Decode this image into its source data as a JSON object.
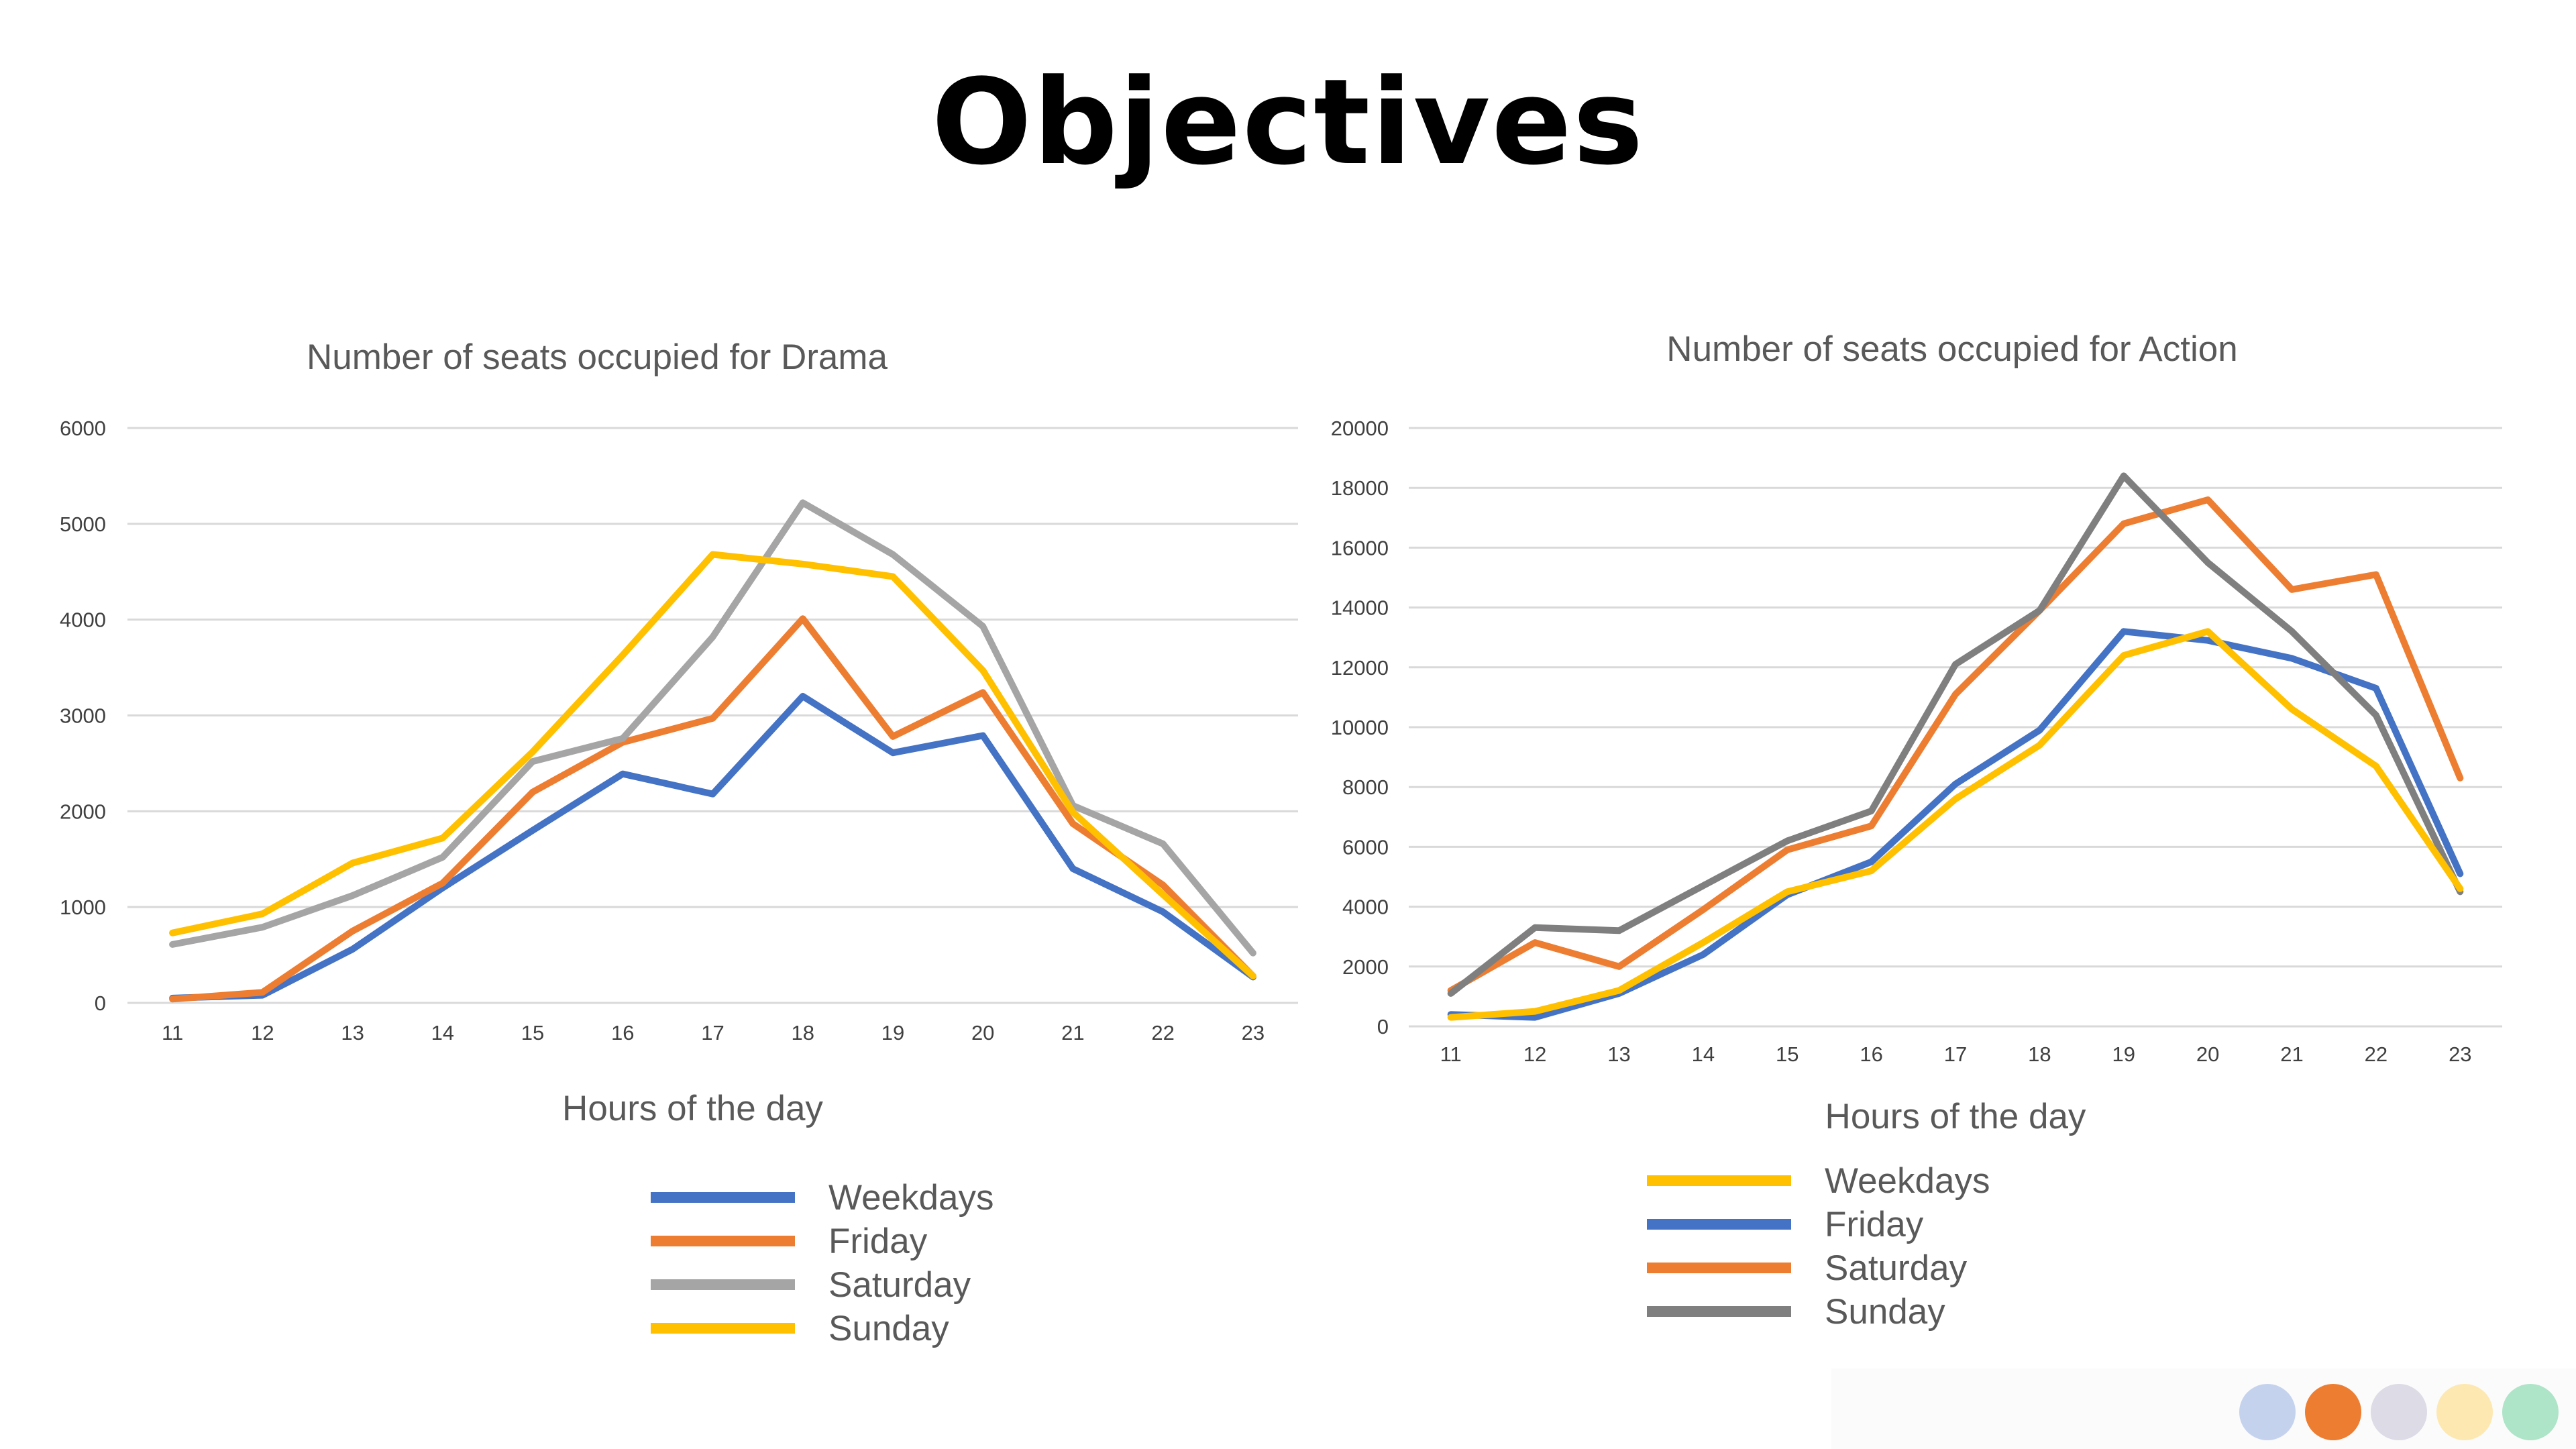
{
  "page": {
    "title": "Objectives"
  },
  "decor": {
    "dots": [
      "#c5d2ee",
      "#ed7d31",
      "#dcdbe6",
      "#fde8b1",
      "#aee4c8"
    ]
  },
  "chart_data": [
    {
      "type": "line",
      "title": "Number of seats occupied for Drama",
      "xlabel": "Hours of the day",
      "ylabel": "",
      "x": [
        11,
        12,
        13,
        14,
        15,
        16,
        17,
        18,
        19,
        20,
        21,
        22,
        23
      ],
      "ylim": [
        0,
        6000
      ],
      "yticks": [
        0,
        1000,
        2000,
        3000,
        4000,
        5000,
        6000
      ],
      "grid": true,
      "legend_position": "bottom",
      "series": [
        {
          "name": "Weekdays",
          "color": "#4472c4",
          "values": [
            50,
            80,
            560,
            1200,
            1800,
            2390,
            2180,
            3200,
            2610,
            2790,
            1400,
            950,
            270
          ]
        },
        {
          "name": "Friday",
          "color": "#ed7d31",
          "values": [
            40,
            110,
            750,
            1250,
            2200,
            2720,
            2970,
            4010,
            2780,
            3240,
            1870,
            1230,
            280
          ]
        },
        {
          "name": "Saturday",
          "color": "#a5a5a5",
          "values": [
            610,
            790,
            1120,
            1520,
            2520,
            2760,
            3820,
            5220,
            4680,
            3930,
            2060,
            1660,
            520
          ]
        },
        {
          "name": "Sunday",
          "color": "#ffc000",
          "values": [
            730,
            930,
            1460,
            1720,
            2620,
            3630,
            4680,
            4580,
            4450,
            3470,
            1990,
            1130,
            280
          ]
        }
      ],
      "legend_order": [
        "Weekdays",
        "Friday",
        "Saturday",
        "Sunday"
      ]
    },
    {
      "type": "line",
      "title": "Number of seats occupied for Action",
      "xlabel": "Hours of the day",
      "ylabel": "",
      "x": [
        11,
        12,
        13,
        14,
        15,
        16,
        17,
        18,
        19,
        20,
        21,
        22,
        23
      ],
      "ylim": [
        0,
        20000
      ],
      "yticks": [
        0,
        2000,
        4000,
        6000,
        8000,
        10000,
        12000,
        14000,
        16000,
        18000,
        20000
      ],
      "grid": true,
      "legend_position": "bottom",
      "series": [
        {
          "name": "Friday",
          "color": "#4472c4",
          "values": [
            400,
            300,
            1100,
            2400,
            4400,
            5500,
            8100,
            9900,
            13200,
            12900,
            12300,
            11300,
            5100
          ]
        },
        {
          "name": "Saturday",
          "color": "#ed7d31",
          "values": [
            1200,
            2800,
            2000,
            3900,
            5900,
            6700,
            11100,
            13900,
            16800,
            17600,
            14600,
            15100,
            8300
          ]
        },
        {
          "name": "Sunday",
          "color": "#7f7f7f",
          "values": [
            1100,
            3300,
            3200,
            4700,
            6200,
            7200,
            12100,
            13900,
            18400,
            15500,
            13200,
            10400,
            4500
          ]
        },
        {
          "name": "Weekdays",
          "color": "#ffc000",
          "values": [
            300,
            500,
            1200,
            2800,
            4500,
            5200,
            7600,
            9400,
            12400,
            13200,
            10600,
            8700,
            4600
          ]
        }
      ],
      "legend_order": [
        "Weekdays",
        "Friday",
        "Saturday",
        "Sunday"
      ]
    }
  ]
}
